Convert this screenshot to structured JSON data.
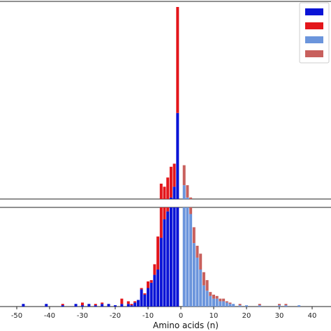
{
  "chart_data": {
    "type": "bar",
    "layout": "broken-y-axis stacked histogram",
    "xlabel": "Amino acids (n)",
    "ylabel": "",
    "xlim": [
      -52,
      46
    ],
    "x_ticks": [
      -50,
      -40,
      -30,
      -20,
      -10,
      0,
      10,
      20,
      30,
      40
    ],
    "legend": {
      "placement": "top-right",
      "entries": [
        "",
        "",
        "",
        ""
      ]
    },
    "colors": {
      "neg_dark": "#0a14d6",
      "neg_red": "#e3161b",
      "pos_light": "#6b95dc",
      "pos_red": "#c8605d",
      "axis": "#222222"
    },
    "upper_panel": {
      "ylim": [
        75,
        200
      ]
    },
    "lower_panel": {
      "ylim": [
        0,
        75
      ]
    },
    "negative_series": {
      "colors": [
        "neg_dark",
        "neg_red"
      ],
      "x": [
        -48,
        -41,
        -36,
        -32,
        -30,
        -28,
        -26,
        -24,
        -22,
        -20,
        -18,
        -16,
        -15,
        -14,
        -13,
        -12,
        -11,
        -10,
        -9,
        -8,
        -7,
        -6,
        -5,
        -4,
        -3,
        -2,
        -1
      ],
      "bottom": [
        2,
        2,
        1,
        2,
        1,
        2,
        1,
        2,
        2,
        1,
        2,
        2,
        1,
        3,
        5,
        13,
        9,
        14,
        18,
        24,
        28,
        52,
        66,
        72,
        76,
        83,
        131
      ],
      "top": [
        0,
        0,
        1,
        0,
        2,
        0,
        1,
        1,
        0,
        0,
        4,
        2,
        1,
        1,
        0,
        1,
        1,
        5,
        2,
        8,
        25,
        33,
        17,
        17,
        20,
        15,
        77
      ]
    },
    "positive_series": {
      "colors": [
        "pos_light",
        "pos_red"
      ],
      "x": [
        1,
        2,
        3,
        4,
        5,
        6,
        7,
        8,
        9,
        10,
        11,
        12,
        13,
        14,
        15,
        16,
        18,
        20,
        24,
        30,
        32,
        36
      ],
      "bottom": [
        84,
        76,
        70,
        48,
        37,
        28,
        16,
        12,
        8,
        6,
        6,
        4,
        4,
        3,
        2,
        2,
        1,
        1,
        1,
        1,
        1,
        1
      ],
      "top": [
        13,
        8,
        6,
        12,
        9,
        12,
        10,
        8,
        3,
        3,
        2,
        2,
        2,
        1,
        1,
        0,
        1,
        0,
        1,
        1,
        1,
        0
      ]
    }
  }
}
